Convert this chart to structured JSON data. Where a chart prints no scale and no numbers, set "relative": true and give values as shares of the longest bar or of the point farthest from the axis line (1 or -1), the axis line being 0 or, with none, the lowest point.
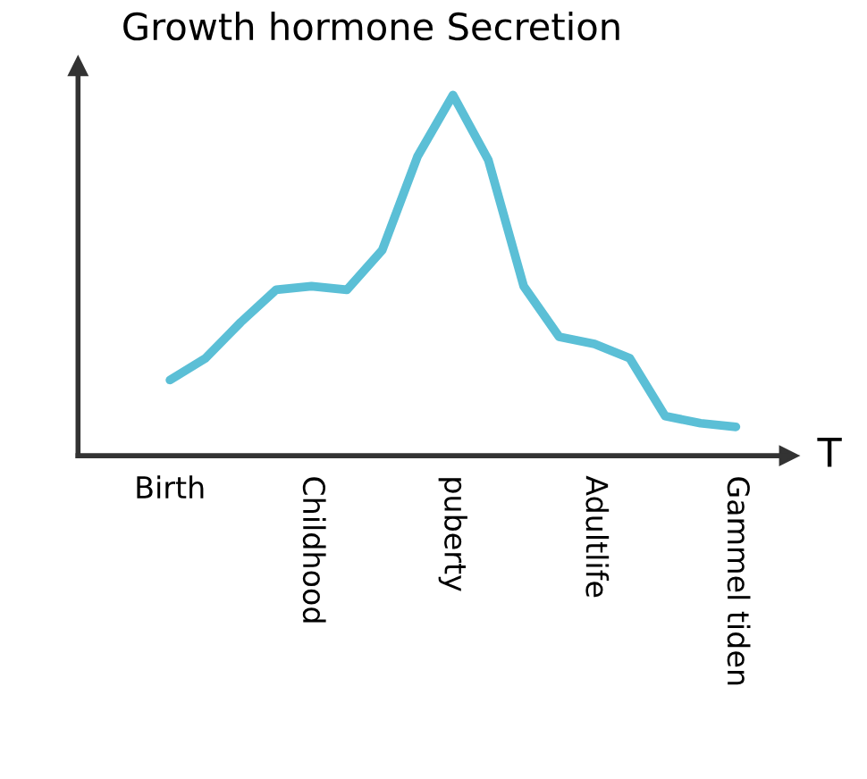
{
  "chart_data": {
    "type": "line",
    "relative": true,
    "ylabel": "Growth hormone Secretion",
    "xlabel": "T",
    "categories": [
      "Birth",
      null,
      null,
      null,
      "Childhood",
      null,
      null,
      null,
      "puberty",
      null,
      null,
      null,
      "Adultlife",
      null,
      null,
      null,
      "Gammel tiden"
    ],
    "series": [
      {
        "color": "#5bbfd6",
        "values": [
          0.21,
          0.27,
          0.37,
          0.46,
          0.47,
          0.46,
          0.57,
          0.83,
          1.0,
          0.82,
          0.47,
          0.33,
          0.31,
          0.27,
          0.11,
          0.09,
          0.08
        ]
      }
    ],
    "grid": false,
    "legend": false,
    "marker": "none",
    "line_style": "solid"
  }
}
